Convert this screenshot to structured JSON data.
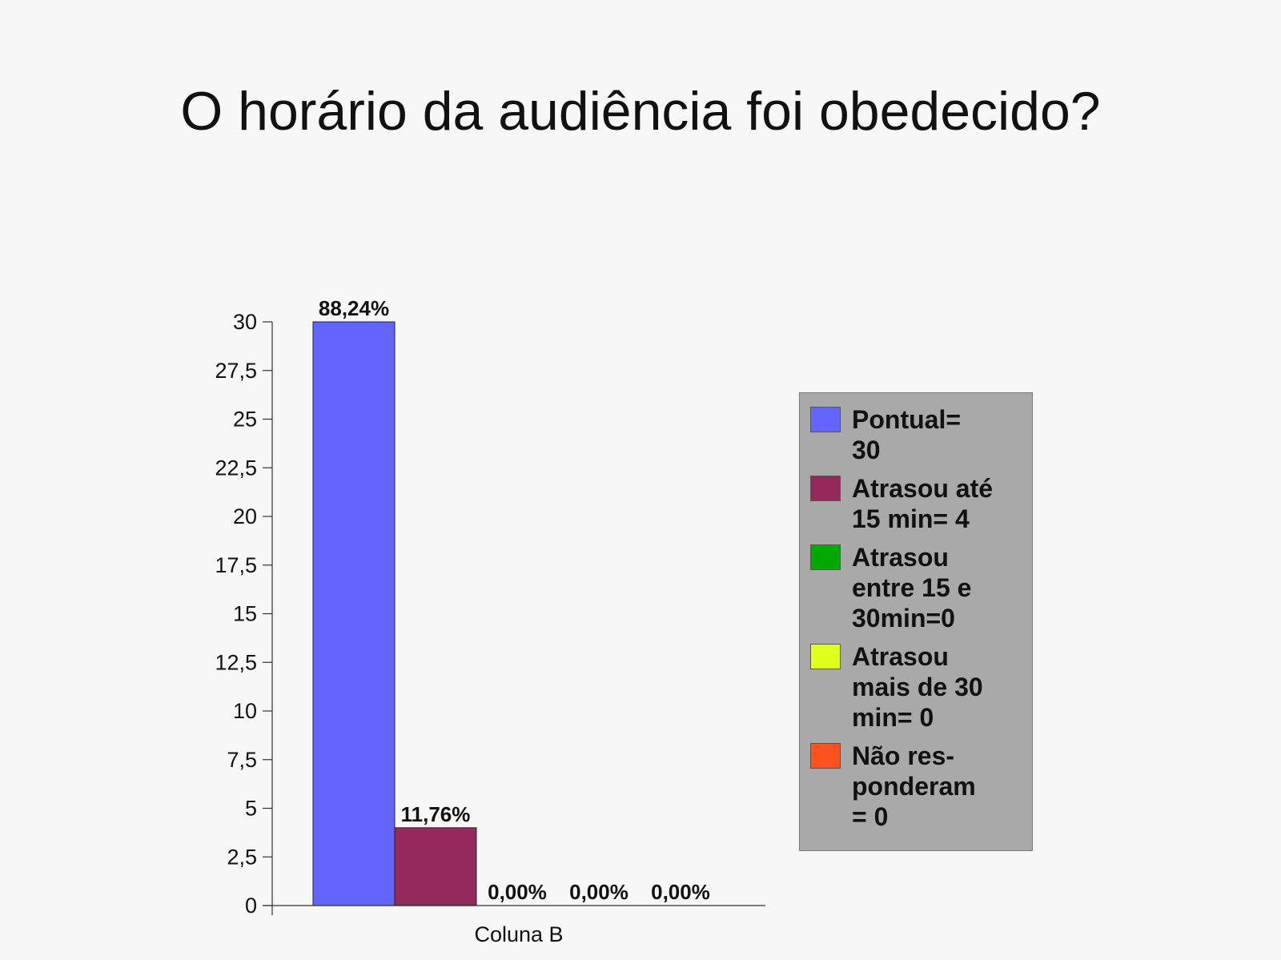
{
  "title": "O horário da audiência foi obedecido?",
  "chart_data": {
    "type": "bar",
    "title": "O horário da audiência foi obedecido?",
    "categories": [
      "Coluna B"
    ],
    "ylim": [
      0,
      30
    ],
    "yticks": [
      "0",
      "2,5",
      "5",
      "7,5",
      "10",
      "12,5",
      "15",
      "17,5",
      "20",
      "22,5",
      "25",
      "27,5",
      "30"
    ],
    "ytick_values": [
      0,
      2.5,
      5,
      7.5,
      10,
      12.5,
      15,
      17.5,
      20,
      22.5,
      25,
      27.5,
      30
    ],
    "grid": false,
    "legend_position": "right",
    "series": [
      {
        "name": "Pontual=\n30",
        "values": [
          30
        ],
        "label": "88,24%",
        "color": "#6464ff"
      },
      {
        "name": "Atrasou até\n15 min= 4",
        "values": [
          4
        ],
        "label": "11,76%",
        "color": "#95295c"
      },
      {
        "name": "Atrasou\nentre 15 e\n30min=0",
        "values": [
          0
        ],
        "label": "0,00%",
        "color": "#00a800"
      },
      {
        "name": "Atrasou\nmais de 30\nmin= 0",
        "values": [
          0
        ],
        "label": "0,00%",
        "color": "#e0ff1c"
      },
      {
        "name": "Não res-\nponderam\n= 0",
        "values": [
          0
        ],
        "label": "0,00%",
        "color": "#ff5020"
      }
    ]
  }
}
